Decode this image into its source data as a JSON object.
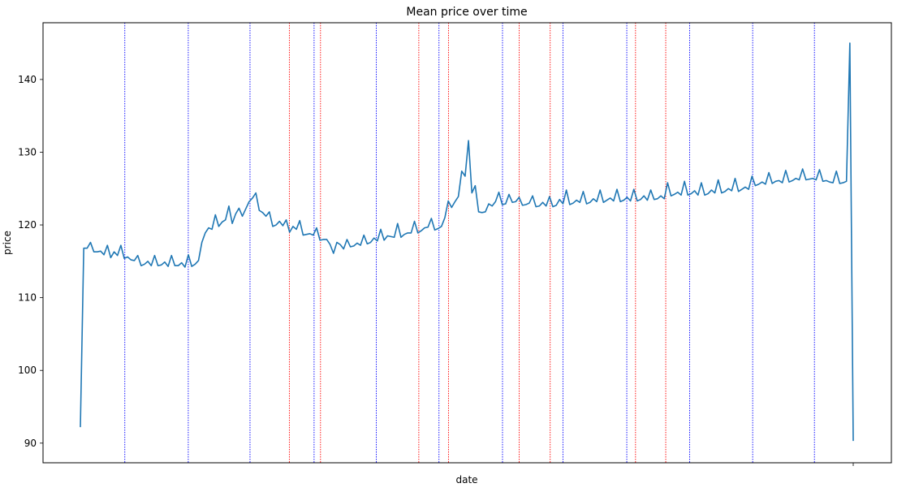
{
  "chart_data": {
    "type": "line",
    "title": "Mean price over time",
    "xlabel": "date",
    "ylabel": "price",
    "ylim": [
      87.3,
      147.8
    ],
    "yticks": [
      90,
      100,
      110,
      120,
      130,
      140
    ],
    "grid": false,
    "series": [
      {
        "color": "#1f77b4",
        "y": [
          92.2,
          116.8,
          116.8,
          117.6,
          116.3,
          116.3,
          116.4,
          115.9,
          117.2,
          115.5,
          116.3,
          115.8,
          117.2,
          115.4,
          115.6,
          115.2,
          115.1,
          115.8,
          114.4,
          114.6,
          115.0,
          114.4,
          115.8,
          114.4,
          114.5,
          114.9,
          114.3,
          115.8,
          114.4,
          114.4,
          114.8,
          114.2,
          115.9,
          114.3,
          114.6,
          115.1,
          117.6,
          118.9,
          119.6,
          119.4,
          121.4,
          119.8,
          120.4,
          120.7,
          122.6,
          120.2,
          121.5,
          122.3,
          121.2,
          122.2,
          123.2,
          123.7,
          124.4,
          122.0,
          121.7,
          121.2,
          121.8,
          119.8,
          120.0,
          120.5,
          119.9,
          120.7,
          119.0,
          119.8,
          119.4,
          120.6,
          118.6,
          118.7,
          118.8,
          118.6,
          119.6,
          117.9,
          118.0,
          118.0,
          117.3,
          116.1,
          117.6,
          117.3,
          116.7,
          118.0,
          117.0,
          117.1,
          117.5,
          117.2,
          118.6,
          117.4,
          117.6,
          118.2,
          117.8,
          119.4,
          117.9,
          118.5,
          118.4,
          118.3,
          120.2,
          118.3,
          118.7,
          118.9,
          118.9,
          120.5,
          118.9,
          119.2,
          119.6,
          119.7,
          120.9,
          119.3,
          119.5,
          119.8,
          121.0,
          123.3,
          122.4,
          123.2,
          123.9,
          127.4,
          126.7,
          131.6,
          124.4,
          125.4,
          121.8,
          121.7,
          121.8,
          122.9,
          122.6,
          123.2,
          124.5,
          122.8,
          122.9,
          124.2,
          123.1,
          123.2,
          123.8,
          122.7,
          122.8,
          123.0,
          124.0,
          122.5,
          122.6,
          123.1,
          122.6,
          123.9,
          122.5,
          122.7,
          123.5,
          122.9,
          124.8,
          122.8,
          123.0,
          123.4,
          123.1,
          124.6,
          122.9,
          123.1,
          123.6,
          123.2,
          124.8,
          123.1,
          123.4,
          123.7,
          123.3,
          124.9,
          123.2,
          123.4,
          123.8,
          123.3,
          124.9,
          123.3,
          123.5,
          124.0,
          123.4,
          124.8,
          123.5,
          123.6,
          124.0,
          123.6,
          125.8,
          124.0,
          124.2,
          124.5,
          124.1,
          126.0,
          124.1,
          124.3,
          124.7,
          124.1,
          125.8,
          124.1,
          124.3,
          124.8,
          124.4,
          126.2,
          124.4,
          124.6,
          125.0,
          124.7,
          126.4,
          124.6,
          124.9,
          125.2,
          124.9,
          126.7,
          125.4,
          125.6,
          125.9,
          125.6,
          127.2,
          125.7,
          126.0,
          126.1,
          125.8,
          127.5,
          125.9,
          126.1,
          126.4,
          126.2,
          127.7,
          126.2,
          126.3,
          126.4,
          126.2,
          127.6,
          126.0,
          126.1,
          125.9,
          125.8,
          127.4,
          125.7,
          125.8,
          126.0,
          145.0,
          90.3
        ]
      }
    ],
    "vlines": [
      {
        "color": "#0000ff",
        "pos": 0.0575
      },
      {
        "color": "#0000ff",
        "pos": 0.1396
      },
      {
        "color": "#0000ff",
        "pos": 0.2195
      },
      {
        "color": "#ff0000",
        "pos": 0.2704
      },
      {
        "color": "#0000ff",
        "pos": 0.3024
      },
      {
        "color": "#ff0000",
        "pos": 0.3107
      },
      {
        "color": "#0000ff",
        "pos": 0.3829
      },
      {
        "color": "#ff0000",
        "pos": 0.4379
      },
      {
        "color": "#0000ff",
        "pos": 0.464
      },
      {
        "color": "#ff0000",
        "pos": 0.4763
      },
      {
        "color": "#0000ff",
        "pos": 0.5462
      },
      {
        "color": "#ff0000",
        "pos": 0.5678
      },
      {
        "color": "#ff0000",
        "pos": 0.6079
      },
      {
        "color": "#0000ff",
        "pos": 0.6244
      },
      {
        "color": "#0000ff",
        "pos": 0.707
      },
      {
        "color": "#ff0000",
        "pos": 0.7183
      },
      {
        "color": "#ff0000",
        "pos": 0.7574
      },
      {
        "color": "#0000ff",
        "pos": 0.7883
      },
      {
        "color": "#0000ff",
        "pos": 0.8699
      },
      {
        "color": "#0000ff",
        "pos": 0.9498
      }
    ]
  }
}
